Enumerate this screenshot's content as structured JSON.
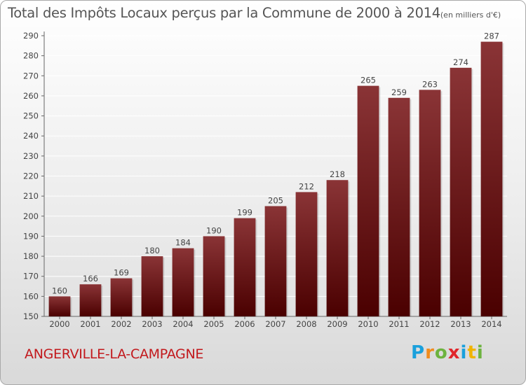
{
  "chart_data": {
    "type": "bar",
    "title": "Total des Impôts Locaux perçus par la Commune de 2000 à 2014",
    "subtitle": "(en milliers d'€)",
    "categories": [
      "2000",
      "2001",
      "2002",
      "2003",
      "2004",
      "2005",
      "2006",
      "2007",
      "2008",
      "2009",
      "2010",
      "2011",
      "2012",
      "2013",
      "2014"
    ],
    "values": [
      160,
      166,
      169,
      180,
      184,
      190,
      199,
      205,
      212,
      218,
      265,
      259,
      263,
      274,
      287
    ],
    "ylim": [
      150,
      290
    ],
    "yticks": [
      150,
      160,
      170,
      180,
      190,
      200,
      210,
      220,
      230,
      240,
      250,
      260,
      270,
      280,
      290
    ],
    "grid": true,
    "legend": "none",
    "colors": {
      "bar_top": "#8a3436",
      "bar_bottom": "#4a0000"
    }
  },
  "commune": "ANGERVILLE-LA-CAMPAGNE",
  "logo": {
    "text": "Proxiti",
    "colors": [
      "#1aa0dc",
      "#f08c1e",
      "#6db33f",
      "#e0262b",
      "#1aa0dc",
      "#f0b400",
      "#6db33f"
    ]
  }
}
